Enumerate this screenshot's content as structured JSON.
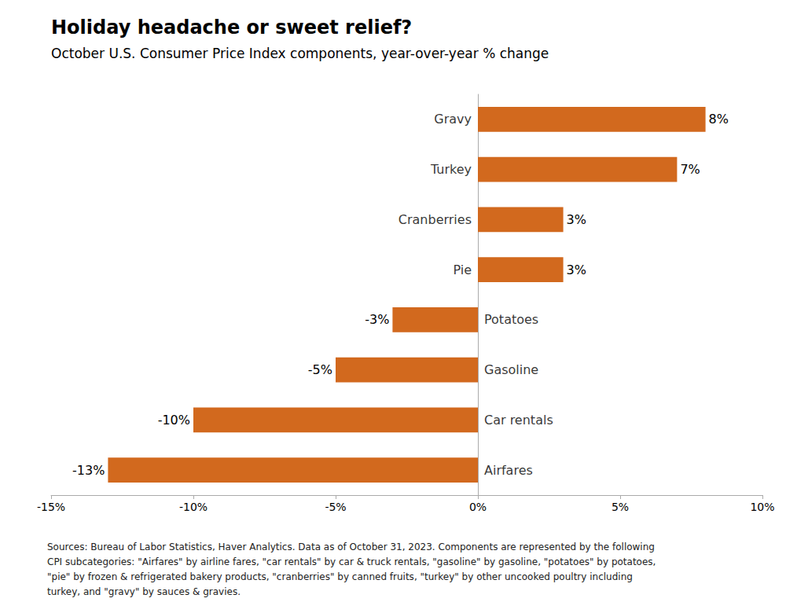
{
  "chart_data": {
    "type": "bar",
    "orientation": "horizontal",
    "title": "Holiday headache or sweet relief?",
    "subtitle": "October U.S. Consumer Price Index components, year-over-year % change",
    "categories": [
      "Airfares",
      "Car rentals",
      "Gasoline",
      "Potatoes",
      "Pie",
      "Cranberries",
      "Turkey",
      "Gravy"
    ],
    "values": [
      -13,
      -10,
      -5,
      -3,
      3,
      3,
      7,
      8
    ],
    "value_labels": [
      "-13%",
      "-10%",
      "-5%",
      "-3%",
      "3%",
      "3%",
      "7%",
      "8%"
    ],
    "data_labels": true,
    "color": "#D2691E",
    "xlim": [
      -15,
      10
    ],
    "xticks": [
      {
        "value": -15,
        "label": "-15%"
      },
      {
        "value": -10,
        "label": "-10%"
      },
      {
        "value": -5,
        "label": "-5%"
      },
      {
        "value": 0,
        "label": "0%"
      },
      {
        "value": 5,
        "label": "5%"
      },
      {
        "value": 10,
        "label": "10%"
      }
    ],
    "grid": false,
    "tick_labels": "x",
    "footnote": "Sources: Bureau of Labor Statistics, Haver Analytics. Data as of October 31, 2023. Components are represented by the following\nCPI subcategories: \"Airfares\" by airline fares, \"car rentals\" by car & truck rentals, \"gasoline\" by gasoline, \"potatoes\" by potatoes,\n\"pie\" by frozen & refrigerated bakery products, \"cranberries\" by canned fruits, \"turkey\" by other uncooked poultry including\nturkey, and \"gravy\" by sauces & gravies."
  }
}
